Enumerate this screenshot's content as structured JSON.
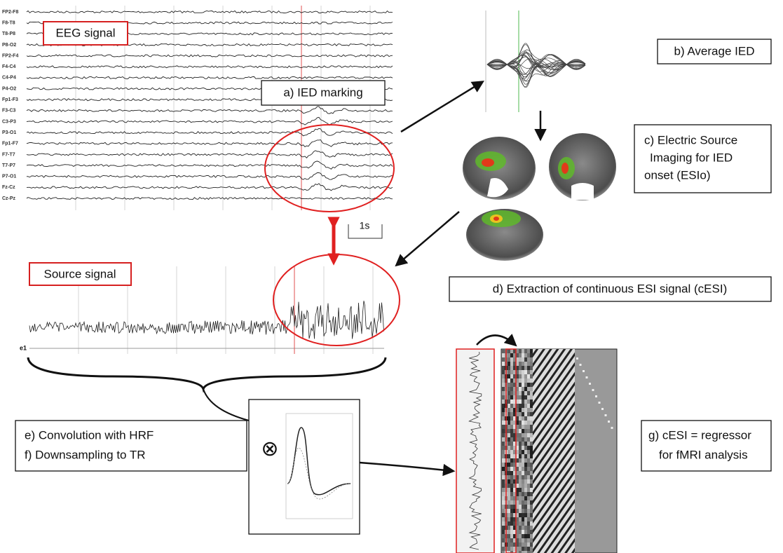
{
  "eeg": {
    "label": "EEG signal",
    "channels": [
      "FP2-F8",
      "F8-T8",
      "T8-P8",
      "P8-O2",
      "FP2-F4",
      "F4-C4",
      "C4-P4",
      "P4-O2",
      "Fp1-F3",
      "F3-C3",
      "C3-P3",
      "P3-O1",
      "Fp1-F7",
      "F7-T7",
      "T7-P7",
      "P7-O1",
      "Fz-Cz",
      "Cz-Pz"
    ],
    "scale": "1s"
  },
  "steps": {
    "a": "a) IED marking",
    "b": "b) Average IED",
    "c": [
      "c) Electric Source",
      "Imaging for IED",
      "onset (ESIo)"
    ],
    "d": "d) Extraction of continuous ESI signal (cESI)",
    "e": "e) Convolution with HRF",
    "f": "f)  Downsampling to TR",
    "g": [
      "g) cESI = regressor",
      "for fMRI analysis"
    ]
  },
  "source": {
    "label": "Source signal",
    "channel": "e1"
  },
  "operator": "⊗"
}
